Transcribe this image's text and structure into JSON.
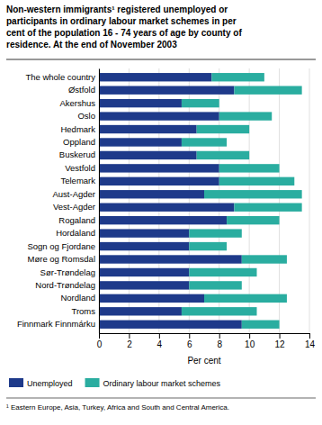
{
  "chart_data": {
    "type": "bar",
    "orientation": "horizontal",
    "stacked": true,
    "title": "Non-western immigrants¹ registered unemployed or\nparticipants in ordinary labour market schemes in per\ncent of the population 16 - 74 years of age by county of\nresidence. At the end of November 2003",
    "categories": [
      "The whole country",
      "Østfold",
      "Akershus",
      "Oslo",
      "Hedmark",
      "Oppland",
      "Buskerud",
      "Vestfold",
      "Telemark",
      "Aust-Agder",
      "Vest-Agder",
      "Rogaland",
      "Hordaland",
      "Sogn og Fjordane",
      "Møre og Romsdal",
      "Sør-Trøndelag",
      "Nord-Trøndelag",
      "Nordland",
      "Troms",
      "Finnmark Finnmárku"
    ],
    "series": [
      {
        "name": "Unemployed",
        "color": "#1e3a8a",
        "values": [
          7.5,
          9.0,
          5.5,
          8.0,
          6.5,
          5.5,
          6.5,
          8.0,
          8.0,
          7.0,
          9.0,
          8.5,
          6.0,
          6.0,
          9.5,
          6.0,
          6.0,
          7.0,
          5.5,
          9.5
        ]
      },
      {
        "name": "Ordinary labour market schemes",
        "color": "#2aada0",
        "values": [
          3.5,
          4.5,
          2.5,
          3.5,
          3.5,
          3.0,
          3.5,
          4.0,
          5.0,
          6.5,
          4.5,
          3.5,
          3.5,
          2.5,
          3.0,
          4.5,
          3.5,
          5.5,
          5.0,
          2.5
        ]
      }
    ],
    "x_label": "Per cent",
    "xlim": [
      0,
      14
    ],
    "xticks": [
      0,
      2,
      4,
      6,
      8,
      10,
      12,
      14
    ],
    "grid": true,
    "legend": "bottom",
    "footnote": "¹ Eastern Europe, Asia, Turkey, Africa and South and Central America."
  }
}
